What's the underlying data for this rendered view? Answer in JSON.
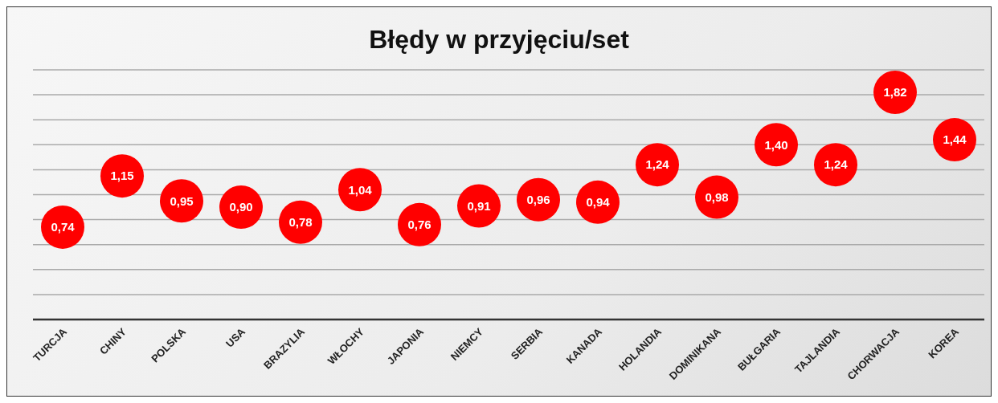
{
  "chart_data": {
    "type": "scatter",
    "title": "Błędy w przyjęciu/set",
    "categories": [
      "TURCJA",
      "CHINY",
      "POLSKA",
      "USA",
      "BRAZYLIA",
      "WŁOCHY",
      "JAPONIA",
      "NIEMCY",
      "SERBIA",
      "KANADA",
      "HOLANDIA",
      "DOMINIKANA",
      "BUŁGARIA",
      "TAJLANDIA",
      "CHORWACJA",
      "KOREA"
    ],
    "values": [
      0.74,
      1.15,
      0.95,
      0.9,
      0.78,
      1.04,
      0.76,
      0.91,
      0.96,
      0.94,
      1.24,
      0.98,
      1.4,
      1.24,
      1.82,
      1.44
    ],
    "value_labels": [
      "0,74",
      "1,15",
      "0,95",
      "0,90",
      "0,78",
      "1,04",
      "0,76",
      "0,91",
      "0,96",
      "0,94",
      "1,24",
      "0,98",
      "1,40",
      "1,24",
      "1,82",
      "1,44"
    ],
    "color": "#ff0000",
    "marker": "circle",
    "ylim": [
      0,
      2
    ],
    "yticks": [
      {
        "value": 0,
        "label": null
      },
      {
        "value": 0.2,
        "label": null
      },
      {
        "value": 0.4,
        "label": null
      },
      {
        "value": 0.6,
        "label": null
      },
      {
        "value": 0.8,
        "label": null
      },
      {
        "value": 1,
        "label": null
      },
      {
        "value": 1.2,
        "label": null
      },
      {
        "value": 1.4,
        "label": null
      },
      {
        "value": 1.6,
        "label": null
      },
      {
        "value": 1.8,
        "label": null
      },
      {
        "value": 2,
        "label": null
      }
    ],
    "grid": "y",
    "tick_labels": "x"
  }
}
